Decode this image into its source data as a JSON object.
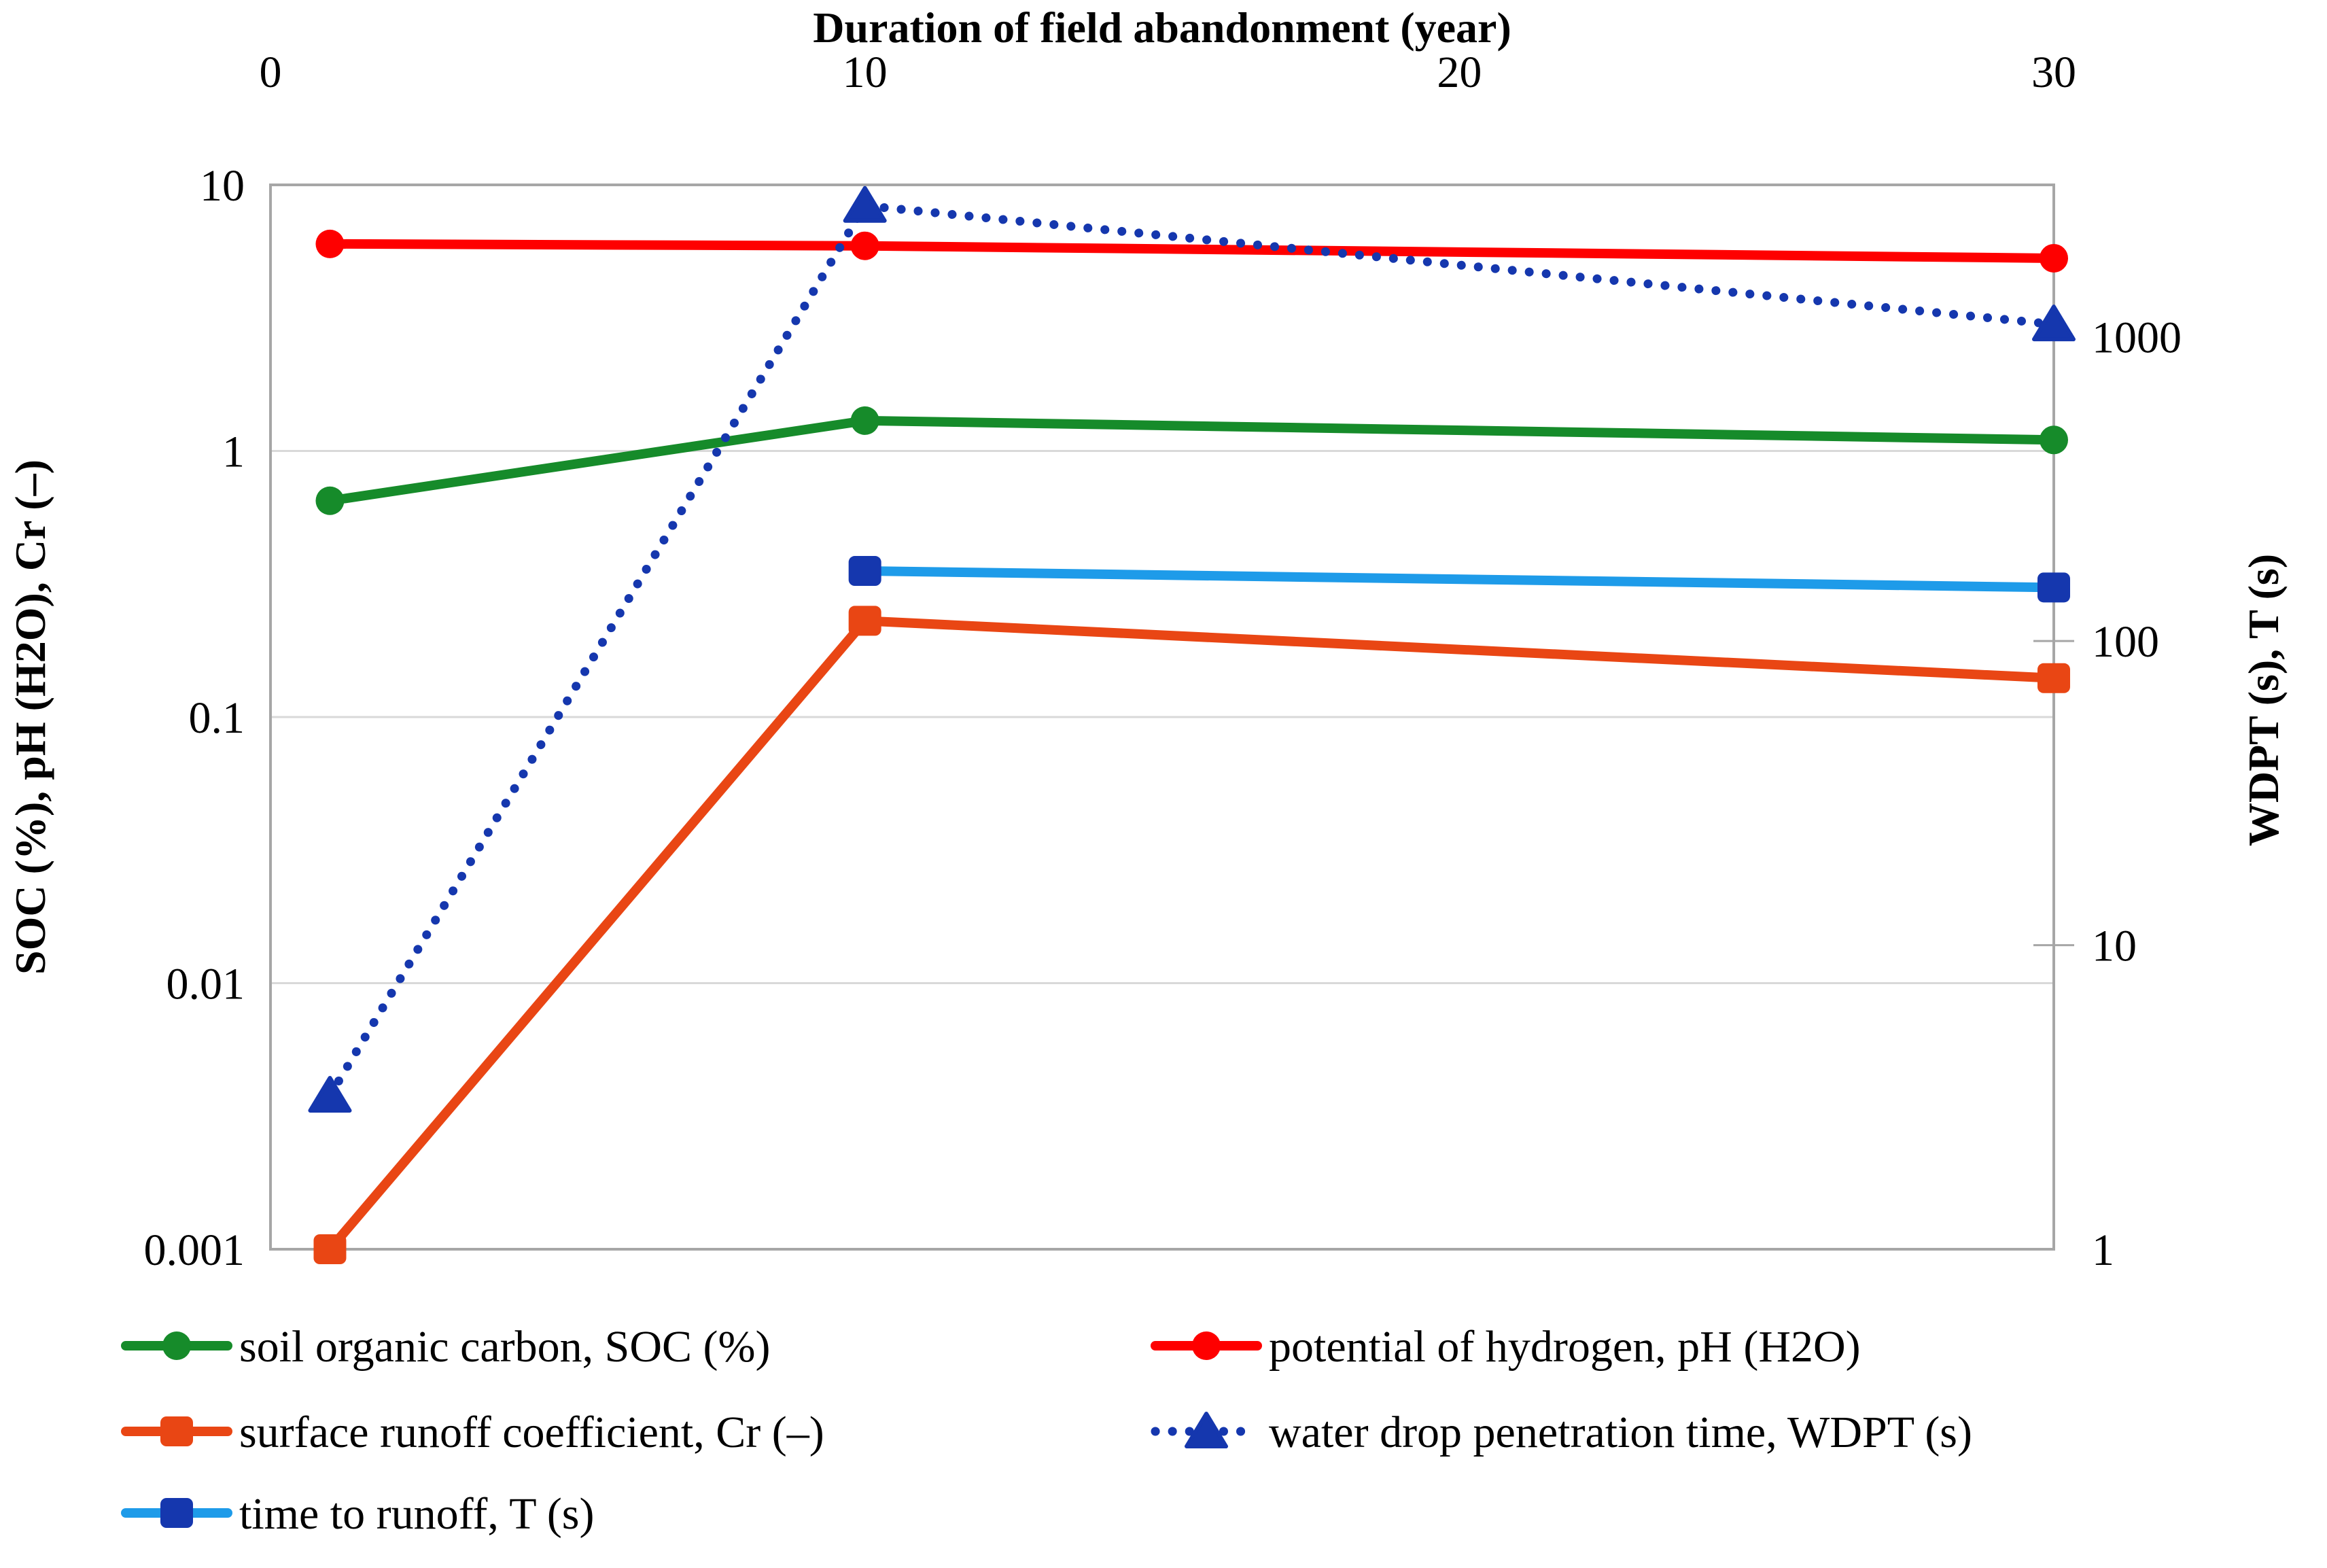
{
  "chart_data": {
    "type": "line",
    "title": "Duration of field abandonment (year)",
    "x_axis": {
      "label": "Duration of field abandonment (year)",
      "position": "top",
      "min": 0,
      "max": 30,
      "tick_values": [
        0,
        10,
        20,
        30
      ],
      "tick_labels": [
        "0",
        "10",
        "20",
        "30"
      ]
    },
    "y_left": {
      "label": "SOC (%), pH (H2O),  Cr (–)",
      "scale": "log",
      "min": 0.001,
      "max": 10,
      "tick_values": [
        10,
        1,
        0.1,
        0.01,
        0.001
      ],
      "tick_labels": [
        "10",
        "1",
        "0.1",
        "0.01",
        "0.001"
      ]
    },
    "y_right": {
      "label": "WDPT (s), T (s)",
      "scale": "log",
      "min": 1,
      "max": 3162,
      "tick_values": [
        1000,
        100,
        10,
        1
      ],
      "tick_labels": [
        "1000",
        "100",
        "10",
        "1"
      ]
    },
    "grid": "horizontal-only",
    "legend_position": "bottom-two-columns",
    "series": [
      {
        "name": "soil organic carbon, SOC (%)",
        "axis": "left",
        "color": "#168B2A",
        "marker_color": "#168B2A",
        "marker": "circle",
        "line_style": "solid",
        "x": [
          1,
          10,
          30
        ],
        "values": [
          0.65,
          1.3,
          1.1
        ]
      },
      {
        "name": "potential of hydrogen, pH (H2O)",
        "axis": "left",
        "color": "#FE0000",
        "marker_color": "#FE0000",
        "marker": "circle",
        "line_style": "solid",
        "x": [
          1,
          10,
          30
        ],
        "values": [
          6.0,
          5.9,
          5.3
        ]
      },
      {
        "name": "surface runoff coefficient, Cr (–)",
        "axis": "left",
        "color": "#E94614",
        "marker_color": "#E94614",
        "marker": "square",
        "line_style": "solid",
        "x": [
          1,
          10,
          30
        ],
        "values": [
          0.001,
          0.23,
          0.14
        ]
      },
      {
        "name": "water drop penetration time, WDPT (s)",
        "axis": "right",
        "color": "#1537AE",
        "marker_color": "#1537AE",
        "marker": "triangle",
        "line_style": "dotted",
        "x": [
          1,
          10,
          30
        ],
        "values": [
          3.2,
          2700,
          1100
        ]
      },
      {
        "name": "time to runoff, T (s)",
        "axis": "right",
        "color": "#1E9BE9",
        "marker_color": "#1537AE",
        "marker": "square",
        "line_style": "solid",
        "x": [
          10,
          30
        ],
        "values": [
          170,
          150
        ]
      }
    ],
    "legend_columns": [
      {
        "series_indices": [
          0,
          2,
          4
        ]
      },
      {
        "series_indices": [
          1,
          3
        ]
      }
    ],
    "colors": {
      "plot_border": "#A6A6A6",
      "gridline": "#D9D9D9",
      "text": "#000000",
      "background": "#FFFFFF"
    }
  }
}
